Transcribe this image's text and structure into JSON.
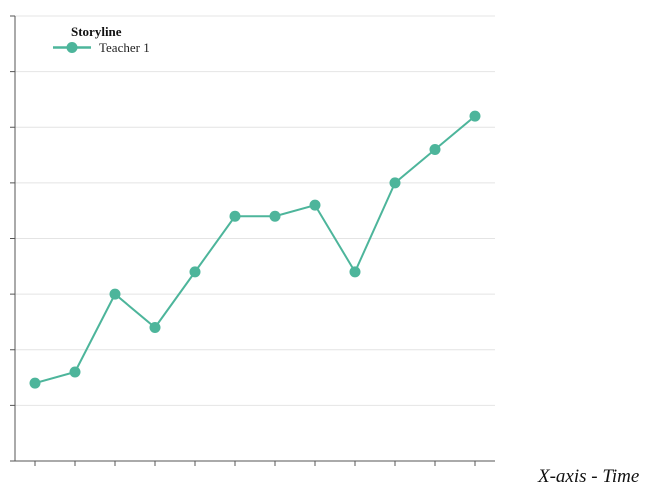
{
  "chart_data": {
    "type": "line",
    "xlabel": "X-axis - Time",
    "ylabel": "",
    "legend": {
      "title": "Storyline",
      "placement": "top-left"
    },
    "grid": "horizontal",
    "x": [
      1,
      2,
      3,
      4,
      5,
      6,
      7,
      8,
      9,
      10,
      11,
      12
    ],
    "xlim": [
      0.5,
      12.5
    ],
    "ylim": [
      0,
      8
    ],
    "series": [
      {
        "name": "Teacher 1",
        "color": "#4db59b",
        "values": [
          1.4,
          1.6,
          3.0,
          2.4,
          3.4,
          4.4,
          4.4,
          4.6,
          3.4,
          5.0,
          5.6,
          6.2
        ]
      }
    ]
  }
}
